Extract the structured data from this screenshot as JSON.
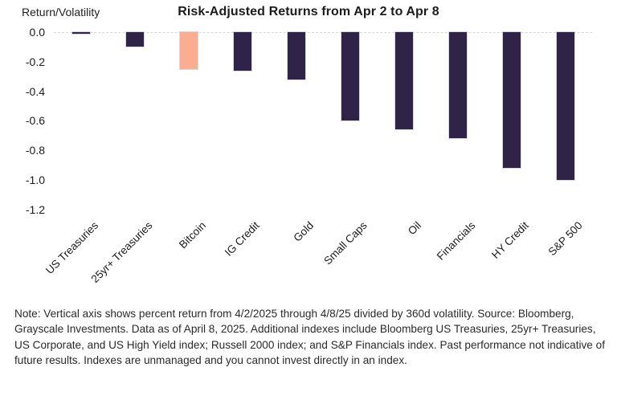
{
  "header": {
    "title": "Risk-Adjusted Returns from Apr 2 to Apr 8",
    "ylabel": "Return/Volatility"
  },
  "chart_data": {
    "type": "bar",
    "title": "Risk-Adjusted Returns from Apr 2 to Apr 8",
    "ylabel": "Return/Volatility",
    "xlabel": "",
    "categories": [
      "US Treasuries",
      "25yr+ Treasuries",
      "Bitcoin",
      "IG Credit",
      "Gold",
      "Small Caps",
      "Oil",
      "Financials",
      "HY Credit",
      "S&P 500"
    ],
    "values": [
      -0.01,
      -0.1,
      -0.25,
      -0.26,
      -0.32,
      -0.6,
      -0.66,
      -0.72,
      -0.92,
      -1.0
    ],
    "highlight_category": "Bitcoin",
    "ytick_labels": [
      "0.0",
      "-0.2",
      "-0.4",
      "-0.6",
      "-0.8",
      "-1.0",
      "-1.2"
    ],
    "ylim": [
      -1.2,
      0
    ],
    "grid": false,
    "legend_position": "none",
    "colors": {
      "bar": "#2F2347",
      "highlight": "#FBAD92",
      "axis_line": "#d6d6d6"
    }
  },
  "note": "Note: Vertical axis shows percent return from 4/2/2025 through 4/8/25 divided by 360d volatility. Source: Bloomberg, Grayscale Investments. Data as of April 8, 2025. Additional indexes include Bloomberg US Treasuries, 25yr+ Treasuries, US Corporate, and US High Yield index; Russell 2000 index; and S&P Financials index. Past performance not indicative of future results. Indexes are unmanaged and you cannot invest directly in an index."
}
